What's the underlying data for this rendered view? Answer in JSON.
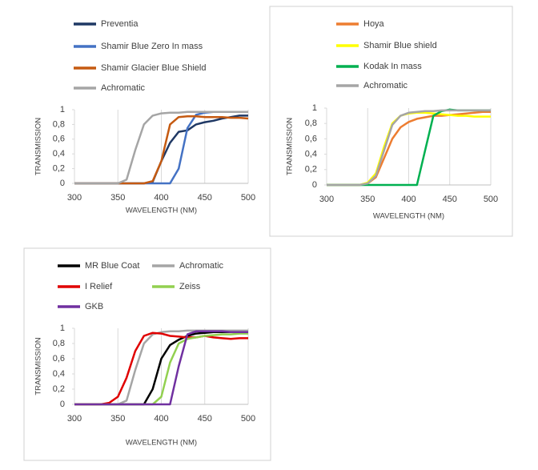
{
  "chart_data": [
    {
      "type": "line",
      "y_label": "TRANSMISSION",
      "x_label": "WAVELENGTH (NM)",
      "x": [
        300,
        310,
        320,
        330,
        340,
        350,
        360,
        370,
        380,
        390,
        400,
        410,
        420,
        430,
        440,
        450,
        460,
        470,
        480,
        490,
        500
      ],
      "xlim": [
        300,
        500
      ],
      "xticks": [
        300,
        350,
        400,
        450,
        500
      ],
      "ylim": [
        0,
        1
      ],
      "yticks": [
        0,
        {
          "value": 0.2,
          "label": "0,2"
        },
        {
          "value": 0.4,
          "label": "0,4"
        },
        {
          "value": 0.6,
          "label": "0,6"
        },
        {
          "value": 0.8,
          "label": "0,8"
        },
        1
      ],
      "grid": true,
      "series": [
        {
          "name": "Preventia",
          "color": "#1f3864",
          "values": [
            0,
            0,
            0,
            0,
            0,
            0,
            0,
            0,
            0,
            0.02,
            0.3,
            0.55,
            0.7,
            0.72,
            0.8,
            0.83,
            0.85,
            0.88,
            0.9,
            0.92,
            0.92
          ]
        },
        {
          "name": "Shamir Blue Zero In mass",
          "color": "#4472c4",
          "values": [
            0,
            0,
            0,
            0,
            0,
            0,
            0,
            0,
            0,
            0,
            0,
            0,
            0.2,
            0.75,
            0.93,
            0.96,
            0.97,
            0.97,
            0.97,
            0.97,
            0.97
          ]
        },
        {
          "name": "Shamir Glacier Blue Shield",
          "color": "#c55a11",
          "values": [
            0,
            0,
            0,
            0,
            0,
            0,
            0,
            0,
            0,
            0.03,
            0.3,
            0.8,
            0.9,
            0.91,
            0.91,
            0.9,
            0.9,
            0.9,
            0.89,
            0.89,
            0.88
          ]
        },
        {
          "name": "Achromatic",
          "color": "#a5a5a5",
          "values": [
            0,
            0,
            0,
            0,
            0,
            0,
            0.05,
            0.45,
            0.8,
            0.92,
            0.95,
            0.96,
            0.96,
            0.97,
            0.97,
            0.97,
            0.97,
            0.97,
            0.97,
            0.97,
            0.97
          ]
        }
      ]
    },
    {
      "type": "line",
      "y_label": "TRANSMISSION",
      "x_label": "WAVELENGTH (NM)",
      "x": [
        300,
        310,
        320,
        330,
        340,
        350,
        360,
        370,
        380,
        390,
        400,
        410,
        420,
        430,
        440,
        450,
        460,
        470,
        480,
        490,
        500
      ],
      "xlim": [
        300,
        500
      ],
      "xticks": [
        300,
        350,
        400,
        450,
        500
      ],
      "ylim": [
        0,
        1
      ],
      "yticks": [
        0,
        {
          "value": 0.2,
          "label": "0,2"
        },
        {
          "value": 0.4,
          "label": "0,4"
        },
        {
          "value": 0.6,
          "label": "0,6"
        },
        {
          "value": 0.8,
          "label": "0,8"
        },
        1
      ],
      "grid": true,
      "series": [
        {
          "name": "Hoya",
          "color": "#ed7d31",
          "values": [
            0,
            0,
            0,
            0,
            0,
            0.02,
            0.1,
            0.35,
            0.6,
            0.75,
            0.82,
            0.86,
            0.88,
            0.9,
            0.9,
            0.91,
            0.92,
            0.93,
            0.94,
            0.95,
            0.95
          ]
        },
        {
          "name": "Shamir Blue shield",
          "color": "#ffff00",
          "values": [
            0,
            0,
            0,
            0,
            0,
            0.03,
            0.15,
            0.5,
            0.8,
            0.9,
            0.93,
            0.94,
            0.94,
            0.93,
            0.92,
            0.91,
            0.9,
            0.9,
            0.89,
            0.89,
            0.89
          ]
        },
        {
          "name": "Kodak In mass",
          "color": "#00b050",
          "values": [
            0,
            0,
            0,
            0,
            0,
            0,
            0,
            0,
            0,
            0,
            0,
            0,
            0.45,
            0.9,
            0.96,
            0.98,
            0.97,
            0.97,
            0.97,
            0.97,
            0.97
          ]
        },
        {
          "name": "Achromatic",
          "color": "#a5a5a5",
          "values": [
            0,
            0,
            0,
            0,
            0,
            0.02,
            0.12,
            0.45,
            0.78,
            0.9,
            0.94,
            0.95,
            0.96,
            0.96,
            0.97,
            0.97,
            0.97,
            0.97,
            0.97,
            0.97,
            0.97
          ]
        }
      ]
    },
    {
      "type": "line",
      "y_label": "TRANSMISSION",
      "x_label": "WAVELENGTH (NM)",
      "x": [
        300,
        310,
        320,
        330,
        340,
        350,
        360,
        370,
        380,
        390,
        400,
        410,
        420,
        430,
        440,
        450,
        460,
        470,
        480,
        490,
        500
      ],
      "xlim": [
        300,
        500
      ],
      "xticks": [
        300,
        350,
        400,
        450,
        500
      ],
      "ylim": [
        0,
        1
      ],
      "yticks": [
        0,
        {
          "value": 0.2,
          "label": "0,2"
        },
        {
          "value": 0.4,
          "label": "0,4"
        },
        {
          "value": 0.6,
          "label": "0,6"
        },
        {
          "value": 0.8,
          "label": "0,8"
        },
        1
      ],
      "grid": true,
      "series": [
        {
          "name": "MR Blue Coat",
          "color": "#000000",
          "values": [
            0,
            0,
            0,
            0,
            0,
            0,
            0,
            0,
            0,
            0.2,
            0.6,
            0.78,
            0.85,
            0.9,
            0.93,
            0.94,
            0.95,
            0.95,
            0.95,
            0.95,
            0.95
          ]
        },
        {
          "name": "Achromatic",
          "color": "#a5a5a5",
          "values": [
            0,
            0,
            0,
            0,
            0,
            0,
            0.05,
            0.45,
            0.8,
            0.92,
            0.95,
            0.96,
            0.96,
            0.97,
            0.97,
            0.97,
            0.97,
            0.97,
            0.97,
            0.97,
            0.97
          ]
        },
        {
          "name": "I  Relief",
          "color": "#e00000",
          "values": [
            0,
            0,
            0,
            0,
            0.02,
            0.1,
            0.35,
            0.7,
            0.9,
            0.94,
            0.93,
            0.9,
            0.89,
            0.88,
            0.88,
            0.9,
            0.88,
            0.87,
            0.86,
            0.87,
            0.87
          ]
        },
        {
          "name": "Zeiss",
          "color": "#92d050",
          "values": [
            0,
            0,
            0,
            0,
            0,
            0,
            0,
            0,
            0,
            0,
            0.1,
            0.55,
            0.8,
            0.86,
            0.88,
            0.9,
            0.91,
            0.92,
            0.92,
            0.93,
            0.93
          ]
        },
        {
          "name": "GKB",
          "color": "#7030a0",
          "values": [
            0,
            0,
            0,
            0,
            0,
            0,
            0,
            0,
            0,
            0,
            0,
            0,
            0.5,
            0.92,
            0.96,
            0.96,
            0.96,
            0.96,
            0.95,
            0.95,
            0.95
          ]
        }
      ]
    }
  ]
}
